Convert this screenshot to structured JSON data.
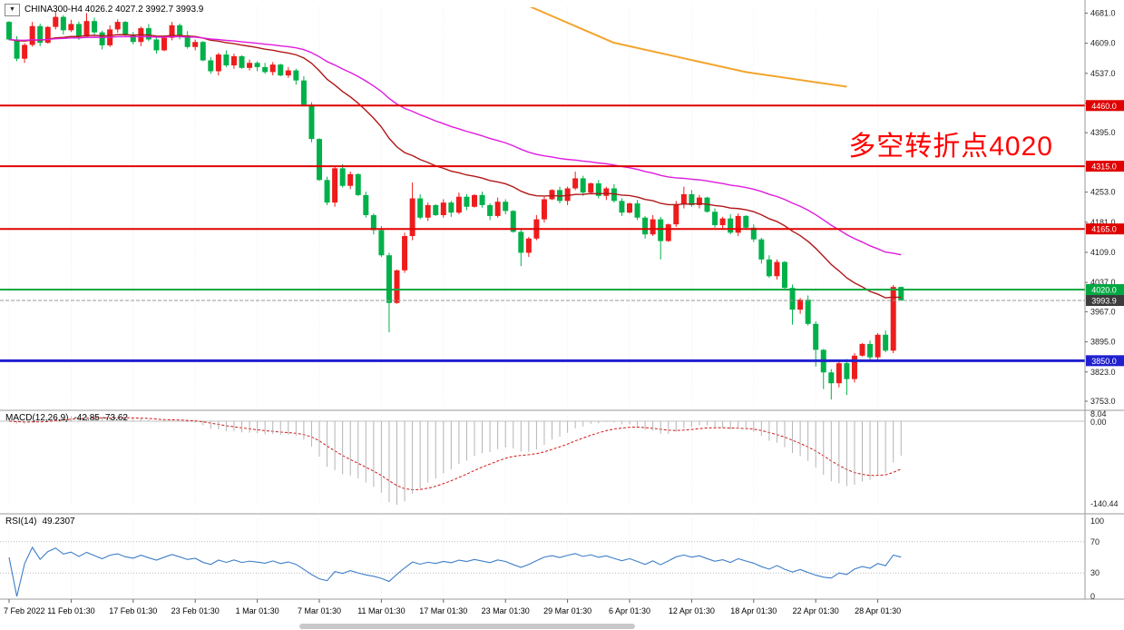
{
  "header": {
    "dropdown_glyph": "▼",
    "readout": "CHINA300-H4 4026.2 4027.2 3992.7 3993.9"
  },
  "annotation": {
    "text": "多空转折点4020",
    "color": "#ff0000"
  },
  "chart_data": {
    "type": "candlestick",
    "title": "CHINA300-H4",
    "ohlc_current": {
      "open": 4026.2,
      "high": 4027.2,
      "low": 3992.7,
      "close": 3993.9
    },
    "ylim": [
      3740,
      4695
    ],
    "grid": "faint-dotted",
    "price_ticks": [
      "4681.0",
      "4609.0",
      "4537.0",
      "4465.0",
      "4395.0",
      "4253.0",
      "4181.0",
      "4109.0",
      "4037.0",
      "3967.0",
      "3895.0",
      "3823.0",
      "3753.0"
    ],
    "time_labels": [
      {
        "text": "7 Feb 2022",
        "bar": 0
      },
      {
        "text": "11 Feb 01:30",
        "bar": 8
      },
      {
        "text": "17 Feb 01:30",
        "bar": 16
      },
      {
        "text": "23 Feb 01:30",
        "bar": 24
      },
      {
        "text": "1 Mar 01:30",
        "bar": 32
      },
      {
        "text": "7 Mar 01:30",
        "bar": 40
      },
      {
        "text": "11 Mar 01:30",
        "bar": 48
      },
      {
        "text": "17 Mar 01:30",
        "bar": 56
      },
      {
        "text": "23 Mar 01:30",
        "bar": 64
      },
      {
        "text": "29 Mar 01:30",
        "bar": 72
      },
      {
        "text": "6 Apr 01:30",
        "bar": 80
      },
      {
        "text": "12 Apr 01:30",
        "bar": 88
      },
      {
        "text": "18 Apr 01:30",
        "bar": 96
      },
      {
        "text": "22 Apr 01:30",
        "bar": 104
      },
      {
        "text": "28 Apr 01:30",
        "bar": 112
      }
    ],
    "first_open": 4660,
    "closes": [
      4618,
      4572,
      4605,
      4650,
      4610,
      4648,
      4672,
      4640,
      4655,
      4625,
      4662,
      4635,
      4604,
      4642,
      4660,
      4628,
      4612,
      4645,
      4618,
      4592,
      4622,
      4652,
      4628,
      4600,
      4612,
      4568,
      4542,
      4582,
      4556,
      4578,
      4550,
      4562,
      4552,
      4540,
      4558,
      4532,
      4544,
      4520,
      4462,
      4380,
      4282,
      4228,
      4310,
      4268,
      4296,
      4246,
      4198,
      4162,
      4102,
      3988,
      4066,
      4148,
      4238,
      4192,
      4222,
      4198,
      4228,
      4204,
      4242,
      4218,
      4246,
      4222,
      4196,
      4230,
      4208,
      4158,
      4108,
      4142,
      4188,
      4236,
      4258,
      4232,
      4262,
      4286,
      4252,
      4274,
      4244,
      4262,
      4232,
      4204,
      4226,
      4192,
      4152,
      4188,
      4136,
      4176,
      4224,
      4248,
      4222,
      4240,
      4206,
      4174,
      4190,
      4156,
      4196,
      4168,
      4140,
      4092,
      4052,
      4086,
      4024,
      3972,
      3996,
      3938,
      3876,
      3822,
      3796,
      3844,
      3806,
      3862,
      3890,
      3858,
      3912,
      3874,
      4026.2,
      3993.9
    ],
    "high_overrides": {
      "6": 4686,
      "10": 4681,
      "52": 4276,
      "73": 4302,
      "87": 4266,
      "114": 4031,
      "115": 4027.2
    },
    "low_overrides": {
      "49": 3918,
      "66": 4076,
      "84": 4092,
      "101": 3936,
      "104": 3836,
      "105": 3782,
      "106": 3757,
      "108": 3768,
      "114": 3868,
      "115": 3992.7
    },
    "up_color": "#ee1c1c",
    "down_color": "#00b14a",
    "hlines": [
      {
        "price": 4460.0,
        "label": "4460.0",
        "color": "#e00000",
        "width": 2
      },
      {
        "price": 4315.0,
        "label": "4315.0",
        "color": "#e00000",
        "width": 2
      },
      {
        "price": 4165.0,
        "label": "4165.0",
        "color": "#e00000",
        "width": 2
      },
      {
        "price": 4020.0,
        "label": "4020.0",
        "color": "#00a843",
        "width": 2
      },
      {
        "price": 3850.0,
        "label": "3850.0",
        "color": "#2020d0",
        "width": 3
      }
    ],
    "current_price": {
      "value": 3993.9,
      "label": "3993.9",
      "badge_bg": "#3c3c3c",
      "line_color": "#999999"
    },
    "ma_lines": [
      {
        "name": "fast-ma",
        "period": 30,
        "color": "#b01818",
        "width": 1.4
      },
      {
        "name": "slow-ma",
        "period": 60,
        "color": "#de1cde",
        "width": 1.4
      }
    ],
    "orange_line": {
      "color": "#f2a52d",
      "width": 2,
      "points": [
        [
          58,
          4770
        ],
        [
          78,
          4610
        ],
        [
          95,
          4540
        ],
        [
          108,
          4505
        ]
      ]
    },
    "macd": {
      "label": "MACD(12,26,9)",
      "values": "-42.85 -73.62",
      "fast": 12,
      "slow": 26,
      "signal_period": 9,
      "axis_labels": [
        "8.04",
        "0.00",
        "-140.44"
      ],
      "hist_color": "#b4b4b4",
      "signal_color": "#d01818"
    },
    "rsi": {
      "label": "RSI(14)",
      "value": "49.2307",
      "period": 14,
      "line_color": "#3d7ec9",
      "levels": [
        70,
        30
      ],
      "axis_labels": [
        "100",
        "70",
        "30",
        "0"
      ]
    }
  }
}
